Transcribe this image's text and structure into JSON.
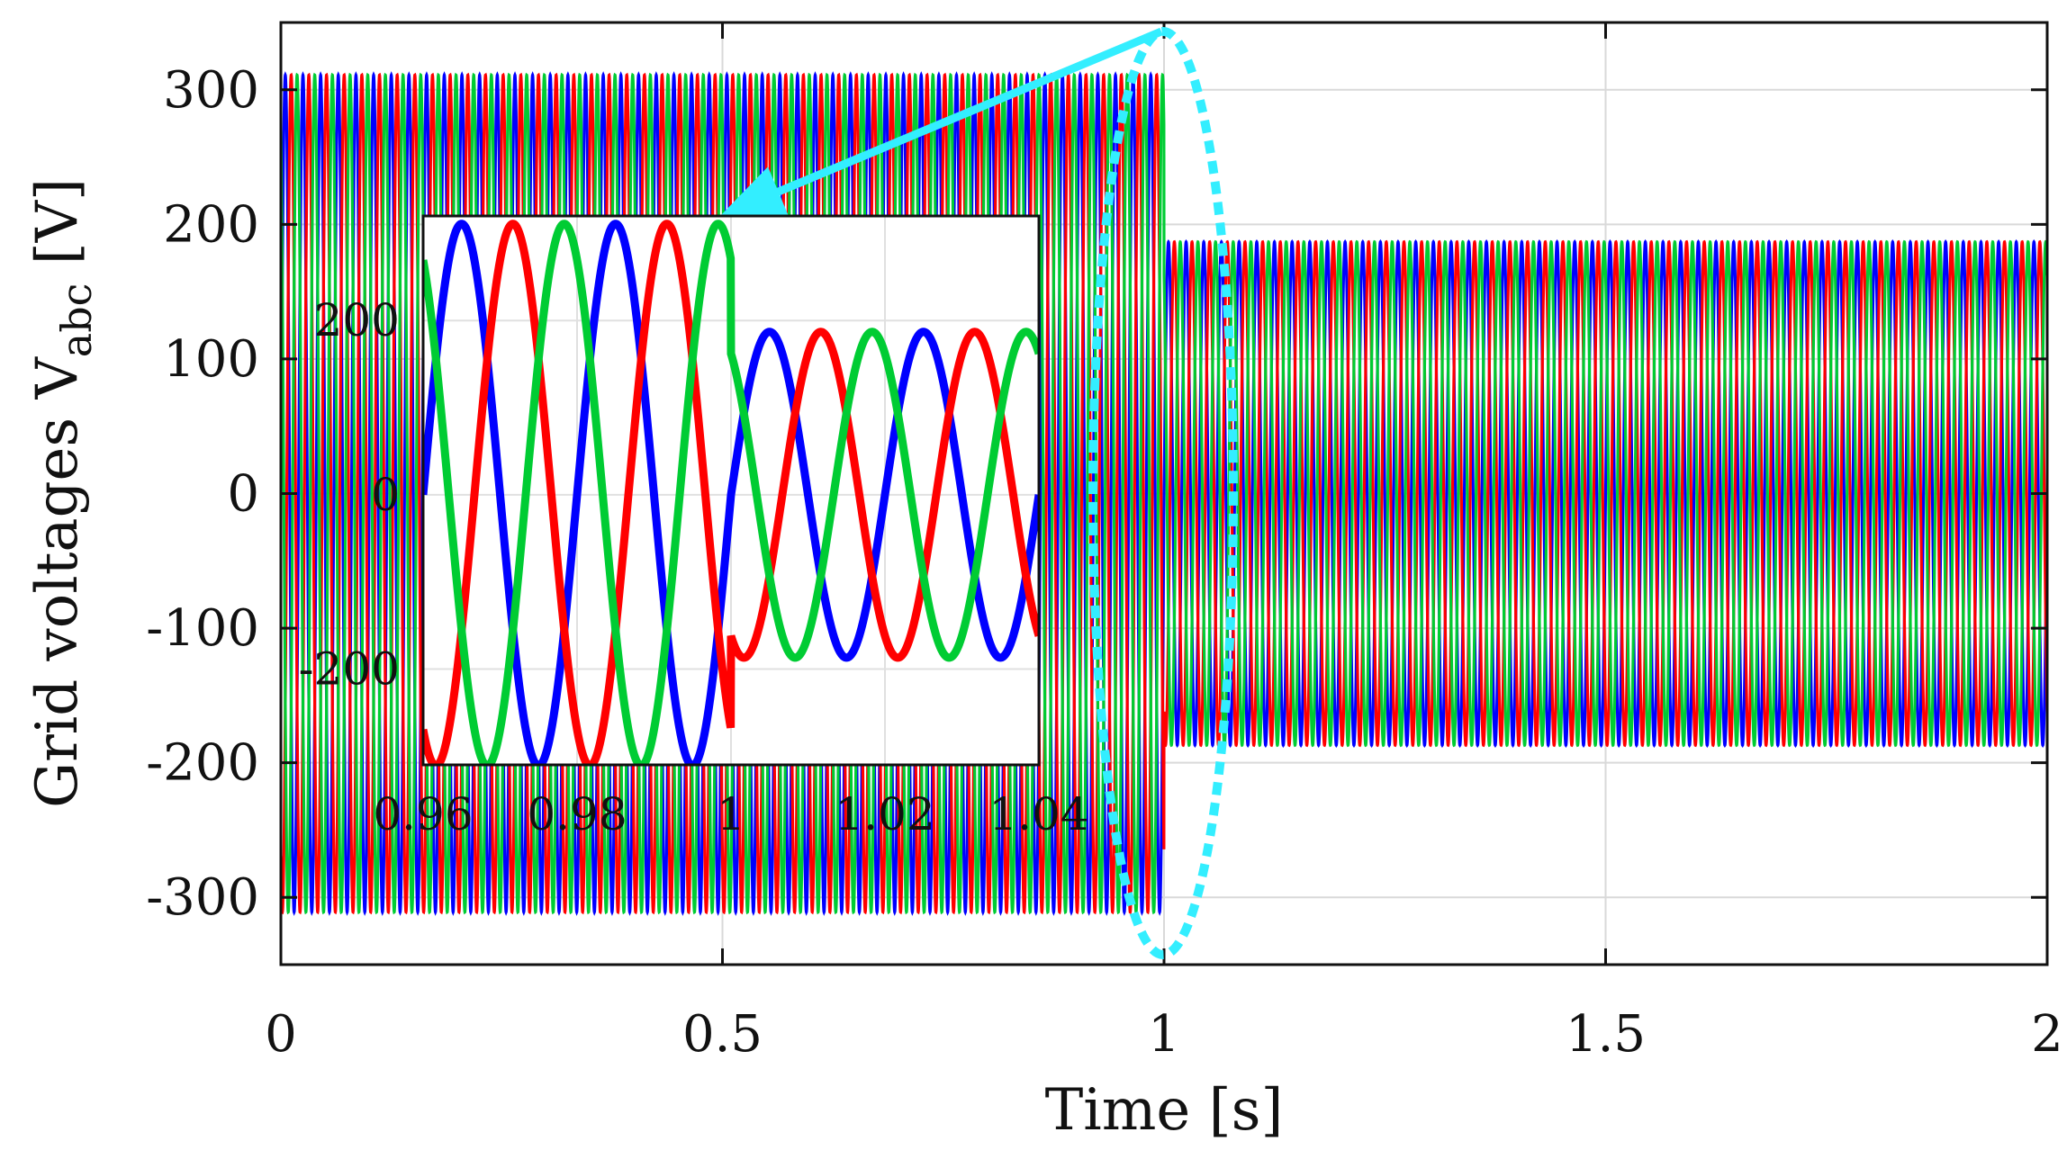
{
  "chart_data": [
    {
      "type": "line",
      "title": "",
      "xlabel": "Time [s]",
      "ylabel": "Grid voltages V",
      "ylabel_subscript": "abc",
      "xlim": [
        0,
        2
      ],
      "ylim": [
        -350,
        350
      ],
      "xticks": [
        0,
        0.5,
        1,
        1.5,
        2
      ],
      "xtick_labels": [
        "0",
        "0.5",
        "1",
        "1.5",
        "2"
      ],
      "yticks": [
        300,
        200,
        100,
        0,
        -100,
        -200,
        -300
      ],
      "ytick_labels": [
        "300",
        "200",
        "100",
        "0",
        "-100",
        "-200",
        "-300"
      ],
      "grid": true,
      "legend": "none",
      "frequency_hz": 50,
      "step_time_s": 1,
      "series": [
        {
          "color": "#0000ff",
          "phase_deg": 0,
          "amplitude_before": 311,
          "amplitude_after": 187
        },
        {
          "color": "#ff0000",
          "phase_deg": -120,
          "amplitude_before": 311,
          "amplitude_after": 187
        },
        {
          "color": "#00cc33",
          "phase_deg": 120,
          "amplitude_before": 311,
          "amplitude_after": 187
        }
      ]
    },
    {
      "type": "line",
      "role": "inset-zoom",
      "xlim": [
        0.96,
        1.04
      ],
      "ylim": [
        -310,
        320
      ],
      "xticks": [
        0.96,
        0.98,
        1,
        1.02,
        1.04
      ],
      "xtick_labels": [
        "0.96",
        "0.98",
        "1",
        "1.02",
        "1.04"
      ],
      "yticks": [
        200,
        0,
        -200
      ],
      "ytick_labels": [
        "200",
        "0",
        "-200"
      ],
      "grid": true,
      "highlight_color": "#33eeff"
    }
  ]
}
